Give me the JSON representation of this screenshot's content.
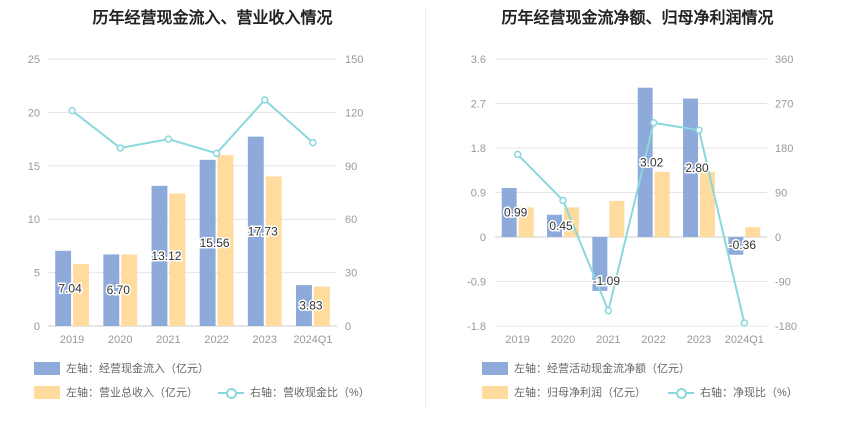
{
  "colors": {
    "bar1": "#8eaadb",
    "bar2": "#ffdc9e",
    "line": "#8ad8dc",
    "grid": "#e6e6e6",
    "axis": "#999999"
  },
  "chart_data": [
    {
      "type": "bar",
      "title": "历年经营现金流入、营业收入情况",
      "categories": [
        "2019",
        "2020",
        "2021",
        "2022",
        "2023",
        "2024Q1"
      ],
      "y_left": {
        "min": 0,
        "max": 25,
        "ticks": [
          "0",
          "5",
          "10",
          "15",
          "20",
          "25"
        ]
      },
      "y_right": {
        "min": 0,
        "max": 150,
        "ticks": [
          "0",
          "30",
          "60",
          "90",
          "120",
          "150"
        ]
      },
      "series": [
        {
          "name": "左轴：经营现金流入（亿元）",
          "type": "bar",
          "axis": "left",
          "values": [
            7.04,
            6.7,
            13.12,
            15.56,
            17.73,
            3.83
          ],
          "labels": [
            "7.04",
            "6.70",
            "13.12",
            "15.56",
            "17.73",
            "3.83"
          ]
        },
        {
          "name": "左轴：营业总收入（亿元）",
          "type": "bar",
          "axis": "left",
          "values": [
            5.8,
            6.7,
            12.4,
            16.0,
            14.0,
            3.7
          ]
        },
        {
          "name": "右轴：营收现金比（%）",
          "type": "line",
          "axis": "right",
          "values": [
            121,
            100,
            105,
            97,
            127,
            103
          ]
        }
      ]
    },
    {
      "type": "bar",
      "title": "历年经营现金流净额、归母净利润情况",
      "categories": [
        "2019",
        "2020",
        "2021",
        "2022",
        "2023",
        "2024Q1"
      ],
      "y_left": {
        "min": -1.8,
        "max": 3.6,
        "ticks": [
          "-1.8",
          "-0.9",
          "0",
          "0.9",
          "1.8",
          "2.7",
          "3.6"
        ]
      },
      "y_right": {
        "min": -180,
        "max": 360,
        "ticks": [
          "-180",
          "-90",
          "0",
          "90",
          "180",
          "270",
          "360"
        ]
      },
      "series": [
        {
          "name": "左轴：经营活动现金流净额（亿元）",
          "type": "bar",
          "axis": "left",
          "values": [
            0.99,
            0.45,
            -1.09,
            3.02,
            2.8,
            -0.36
          ],
          "labels": [
            "0.99",
            "0.45",
            "-1.09",
            "3.02",
            "2.80",
            "-0.36"
          ]
        },
        {
          "name": "左轴：归母净利润（亿元）",
          "type": "bar",
          "axis": "left",
          "values": [
            0.6,
            0.6,
            0.73,
            1.32,
            1.32,
            0.2
          ]
        },
        {
          "name": "右轴：净现比（%）",
          "type": "line",
          "axis": "right",
          "values": [
            167,
            74,
            -149,
            231,
            216,
            -174
          ]
        }
      ]
    }
  ]
}
